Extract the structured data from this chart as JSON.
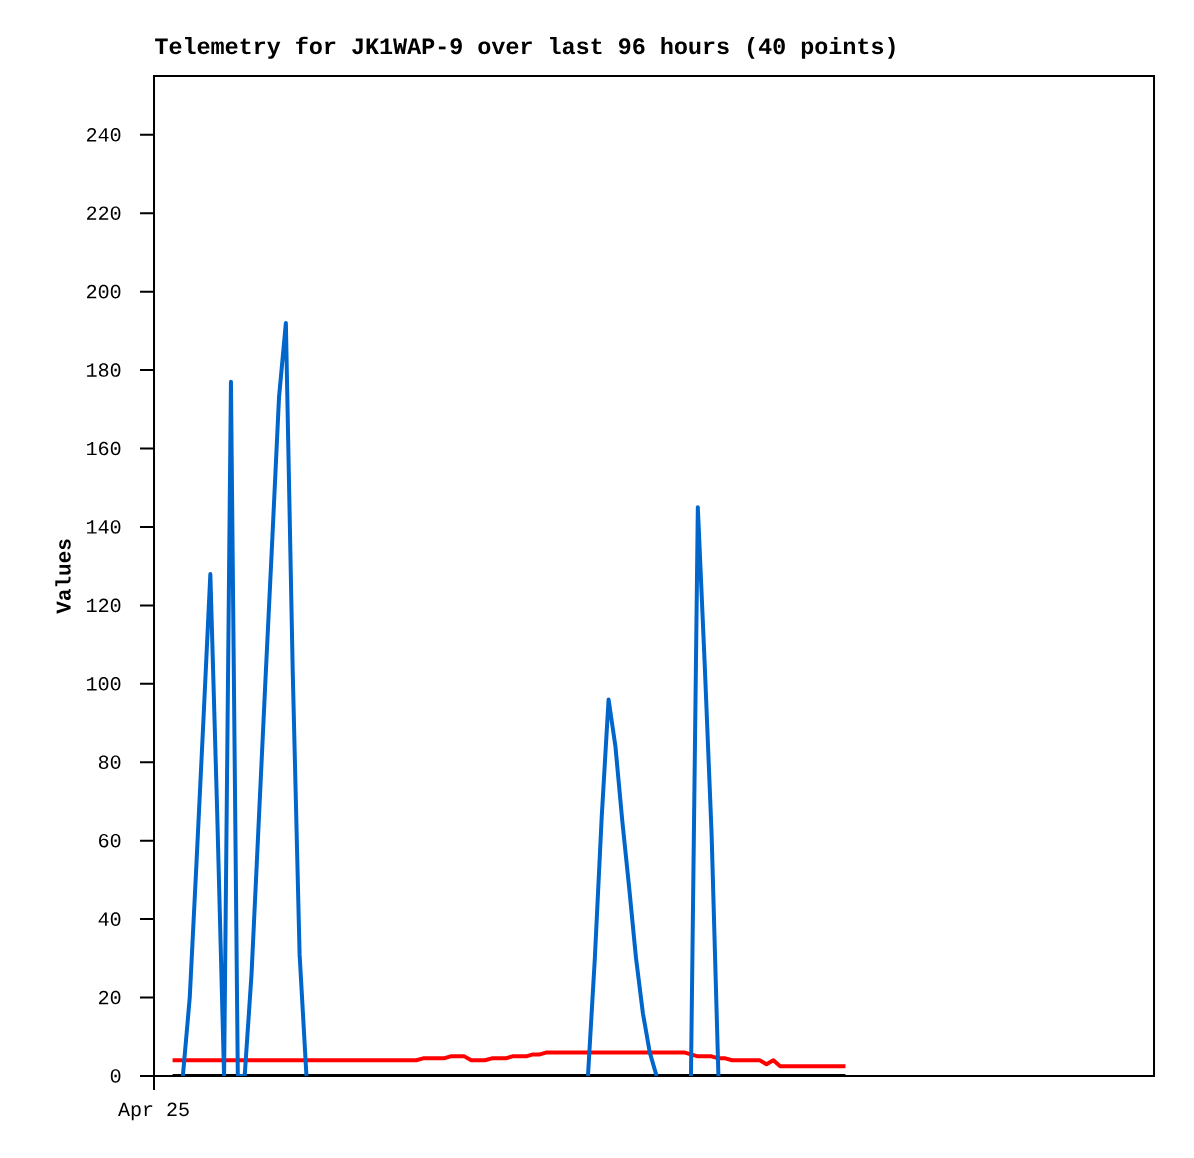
{
  "chart_data": {
    "type": "line",
    "title": "Telemetry for JK1WAP-9 over last 96 hours (40 points)",
    "ylabel": "Values",
    "annotations": [
      "Apr 25"
    ],
    "categories": [
      null,
      null,
      null,
      null,
      null,
      null,
      null,
      null,
      null,
      null,
      null,
      null,
      null,
      null,
      null,
      null,
      null,
      null,
      null,
      null,
      null,
      null,
      null,
      null,
      null,
      null,
      null,
      null,
      null,
      null,
      null,
      null,
      null,
      null,
      null,
      null,
      null,
      null,
      null,
      null,
      null,
      null,
      null,
      null,
      null,
      null,
      null,
      null,
      null,
      null,
      null,
      null,
      null,
      null,
      null,
      null,
      null,
      null,
      null,
      null,
      null,
      null,
      null,
      null,
      null,
      null,
      null,
      null,
      null,
      null,
      null,
      null,
      null,
      null,
      null,
      null,
      null,
      null,
      null,
      null,
      null,
      null,
      null,
      null,
      null,
      null,
      null,
      null,
      null,
      null,
      null,
      null,
      null,
      null,
      null,
      null,
      null,
      null
    ],
    "ylim": [
      0,
      255
    ],
    "yticks": [
      0,
      20,
      40,
      60,
      80,
      100,
      120,
      140,
      160,
      180,
      200,
      220,
      240
    ],
    "series": [
      {
        "color": "#000000",
        "values": [
          0,
          0,
          0,
          0,
          0,
          0,
          0,
          0,
          0,
          0,
          0,
          0,
          0,
          0,
          0,
          0,
          0,
          0,
          0,
          0,
          0,
          0,
          0,
          0,
          0,
          0,
          0,
          0,
          0,
          0,
          0,
          0,
          0,
          0,
          0,
          0,
          0,
          0,
          0,
          0,
          0,
          0,
          0,
          0,
          0,
          0,
          0,
          0,
          0,
          0,
          0,
          0,
          0,
          0,
          0,
          0,
          0,
          0,
          0,
          0,
          0,
          0,
          0,
          0,
          0,
          0,
          0,
          0,
          0,
          0,
          0,
          0,
          0,
          0,
          0,
          0,
          0,
          0,
          0,
          0,
          0,
          0,
          0,
          0,
          0,
          0,
          0,
          0,
          0,
          0,
          0,
          0,
          0,
          0,
          0,
          0,
          0,
          0
        ]
      },
      {
        "color": "#ff0000",
        "values": [
          4,
          4,
          4,
          4,
          4,
          4,
          4,
          4,
          4,
          4,
          4,
          4,
          4,
          4,
          4,
          4,
          4,
          4,
          4,
          4,
          4,
          4,
          4,
          4,
          4,
          4,
          4,
          4,
          4,
          4,
          4,
          4,
          4,
          4,
          4,
          4,
          4.5,
          4.5,
          4.5,
          4.5,
          5,
          5,
          5,
          4,
          4,
          4,
          4.5,
          4.5,
          4.5,
          5,
          5,
          5,
          5.5,
          5.5,
          6,
          6,
          6,
          6,
          6,
          6,
          6,
          6,
          6,
          6,
          6,
          6,
          6,
          6,
          6,
          6,
          6,
          6,
          6,
          6,
          6,
          5.5,
          5,
          5,
          5,
          4.5,
          4.5,
          4,
          4,
          4,
          4,
          4,
          3,
          4,
          2.5,
          2.5,
          2.5,
          2.5,
          2.5,
          2.5,
          2.5,
          2.5,
          2.5,
          2.5
        ]
      },
      {
        "color": "#0066cc",
        "values": [
          null,
          0,
          20,
          55,
          91,
          128,
          67,
          0,
          177,
          0,
          0,
          26,
          63,
          100,
          136,
          173,
          192,
          103,
          31,
          0,
          null,
          null,
          null,
          null,
          null,
          null,
          null,
          null,
          null,
          null,
          null,
          null,
          null,
          null,
          null,
          null,
          null,
          null,
          null,
          null,
          null,
          null,
          null,
          null,
          null,
          null,
          null,
          null,
          null,
          null,
          null,
          null,
          null,
          null,
          null,
          null,
          null,
          null,
          null,
          null,
          0,
          30,
          66,
          96,
          84,
          65,
          48,
          30,
          16,
          6,
          0,
          null,
          null,
          null,
          null,
          0,
          145,
          105,
          62,
          0,
          null,
          null,
          null,
          null,
          null,
          null,
          null,
          null,
          null,
          null,
          null,
          null,
          null,
          null,
          null,
          null,
          null,
          null
        ]
      }
    ]
  }
}
